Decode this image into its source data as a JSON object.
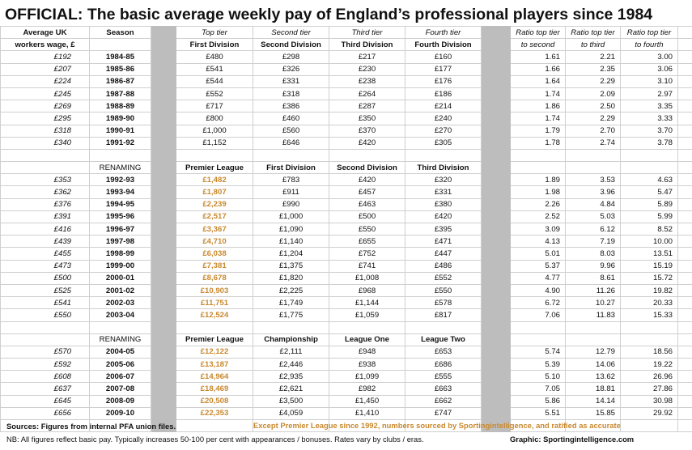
{
  "title": "OFFICIAL: The basic average weekly pay of England’s professional players since 1984",
  "header": {
    "wage_line1": "Average UK",
    "wage_line2": "workers wage, £",
    "season": "Season",
    "tier1": "Top tier",
    "tier2": "Second tier",
    "tier3": "Third tier",
    "tier4": "Fourth tier",
    "div1": "First Division",
    "div2": "Second Division",
    "div3": "Third Division",
    "div4": "Fourth Division",
    "ratio1_l1": "Ratio top tier",
    "ratio1_l2": "to second",
    "ratio2_l1": "Ratio top tier",
    "ratio2_l2": "to third",
    "ratio3_l1": "Ratio top tier",
    "ratio3_l2": "to fourth"
  },
  "section1": [
    {
      "wage": "£192",
      "season": "1984-85",
      "t1": "£480",
      "t2": "£298",
      "t3": "£217",
      "t4": "£160",
      "r1": "1.61",
      "r2": "2.21",
      "r3": "3.00"
    },
    {
      "wage": "£207",
      "season": "1985-86",
      "t1": "£541",
      "t2": "£326",
      "t3": "£230",
      "t4": "£177",
      "r1": "1.66",
      "r2": "2.35",
      "r3": "3.06"
    },
    {
      "wage": "£224",
      "season": "1986-87",
      "t1": "£544",
      "t2": "£331",
      "t3": "£238",
      "t4": "£176",
      "r1": "1.64",
      "r2": "2.29",
      "r3": "3.10"
    },
    {
      "wage": "£245",
      "season": "1987-88",
      "t1": "£552",
      "t2": "£318",
      "t3": "£264",
      "t4": "£186",
      "r1": "1.74",
      "r2": "2.09",
      "r3": "2.97"
    },
    {
      "wage": "£269",
      "season": "1988-89",
      "t1": "£717",
      "t2": "£386",
      "t3": "£287",
      "t4": "£214",
      "r1": "1.86",
      "r2": "2.50",
      "r3": "3.35"
    },
    {
      "wage": "£295",
      "season": "1989-90",
      "t1": "£800",
      "t2": "£460",
      "t3": "£350",
      "t4": "£240",
      "r1": "1.74",
      "r2": "2.29",
      "r3": "3.33"
    },
    {
      "wage": "£318",
      "season": "1990-91",
      "t1": "£1,000",
      "t2": "£560",
      "t3": "£370",
      "t4": "£270",
      "r1": "1.79",
      "r2": "2.70",
      "r3": "3.70"
    },
    {
      "wage": "£340",
      "season": "1991-92",
      "t1": "£1,152",
      "t2": "£646",
      "t3": "£420",
      "t4": "£305",
      "r1": "1.78",
      "r2": "2.74",
      "r3": "3.78"
    }
  ],
  "renaming1": {
    "label": "RENAMING",
    "d1": "Premier League",
    "d2": "First Division",
    "d3": "Second Division",
    "d4": "Third Division"
  },
  "section2": [
    {
      "wage": "£353",
      "season": "1992-93",
      "t1": "£1,482",
      "t2": "£783",
      "t3": "£420",
      "t4": "£320",
      "r1": "1.89",
      "r2": "3.53",
      "r3": "4.63"
    },
    {
      "wage": "£362",
      "season": "1993-94",
      "t1": "£1,807",
      "t2": "£911",
      "t3": "£457",
      "t4": "£331",
      "r1": "1.98",
      "r2": "3.96",
      "r3": "5.47"
    },
    {
      "wage": "£376",
      "season": "1994-95",
      "t1": "£2,239",
      "t2": "£990",
      "t3": "£463",
      "t4": "£380",
      "r1": "2.26",
      "r2": "4.84",
      "r3": "5.89"
    },
    {
      "wage": "£391",
      "season": "1995-96",
      "t1": "£2,517",
      "t2": "£1,000",
      "t3": "£500",
      "t4": "£420",
      "r1": "2.52",
      "r2": "5.03",
      "r3": "5.99"
    },
    {
      "wage": "£416",
      "season": "1996-97",
      "t1": "£3,367",
      "t2": "£1,090",
      "t3": "£550",
      "t4": "£395",
      "r1": "3.09",
      "r2": "6.12",
      "r3": "8.52"
    },
    {
      "wage": "£439",
      "season": "1997-98",
      "t1": "£4,710",
      "t2": "£1,140",
      "t3": "£655",
      "t4": "£471",
      "r1": "4.13",
      "r2": "7.19",
      "r3": "10.00"
    },
    {
      "wage": "£455",
      "season": "1998-99",
      "t1": "£6,038",
      "t2": "£1,204",
      "t3": "£752",
      "t4": "£447",
      "r1": "5.01",
      "r2": "8.03",
      "r3": "13.51"
    },
    {
      "wage": "£473",
      "season": "1999-00",
      "t1": "£7,381",
      "t2": "£1,375",
      "t3": "£741",
      "t4": "£486",
      "r1": "5.37",
      "r2": "9.96",
      "r3": "15.19"
    },
    {
      "wage": "£500",
      "season": "2000-01",
      "t1": "£8,678",
      "t2": "£1,820",
      "t3": "£1,008",
      "t4": "£552",
      "r1": "4.77",
      "r2": "8.61",
      "r3": "15.72"
    },
    {
      "wage": "£525",
      "season": "2001-02",
      "t1": "£10,903",
      "t2": "£2,225",
      "t3": "£968",
      "t4": "£550",
      "r1": "4.90",
      "r2": "11.26",
      "r3": "19.82"
    },
    {
      "wage": "£541",
      "season": "2002-03",
      "t1": "£11,751",
      "t2": "£1,749",
      "t3": "£1,144",
      "t4": "£578",
      "r1": "6.72",
      "r2": "10.27",
      "r3": "20.33"
    },
    {
      "wage": "£550",
      "season": "2003-04",
      "t1": "£12,524",
      "t2": "£1,775",
      "t3": "£1,059",
      "t4": "£817",
      "r1": "7.06",
      "r2": "11.83",
      "r3": "15.33"
    }
  ],
  "renaming2": {
    "label": "RENAMING",
    "d1": "Premier League",
    "d2": "Championship",
    "d3": "League One",
    "d4": "League Two"
  },
  "section3": [
    {
      "wage": "£570",
      "season": "2004-05",
      "t1": "£12,122",
      "t2": "£2,111",
      "t3": "£948",
      "t4": "£653",
      "r1": "5.74",
      "r2": "12.79",
      "r3": "18.56"
    },
    {
      "wage": "£592",
      "season": "2005-06",
      "t1": "£13,187",
      "t2": "£2,446",
      "t3": "£938",
      "t4": "£686",
      "r1": "5.39",
      "r2": "14.06",
      "r3": "19.22"
    },
    {
      "wage": "£608",
      "season": "2006-07",
      "t1": "£14,964",
      "t2": "£2,935",
      "t3": "£1,099",
      "t4": "£555",
      "r1": "5.10",
      "r2": "13.62",
      "r3": "26.96"
    },
    {
      "wage": "£637",
      "season": "2007-08",
      "t1": "£18,469",
      "t2": "£2,621",
      "t3": "£982",
      "t4": "£663",
      "r1": "7.05",
      "r2": "18.81",
      "r3": "27.86"
    },
    {
      "wage": "£645",
      "season": "2008-09",
      "t1": "£20,508",
      "t2": "£3,500",
      "t3": "£1,450",
      "t4": "£662",
      "r1": "5.86",
      "r2": "14.14",
      "r3": "30.98"
    },
    {
      "wage": "£656",
      "season": "2009-10",
      "t1": "£22,353",
      "t2": "£4,059",
      "t3": "£1,410",
      "t4": "£747",
      "r1": "5.51",
      "r2": "15.85",
      "r3": "29.92"
    }
  ],
  "footer": {
    "sources": "Sources: Figures from internal PFA union files.",
    "except": "Except Premier League since 1992, numbers sourced by Sportingintelligence, and ratified as accurate",
    "nb": "NB: All figures reflect basic pay. Typically increases 50-100 per cent with appearances / bonuses. Rates vary by clubs / eras.",
    "graphic": "Graphic: Sportingintelligence.com"
  }
}
